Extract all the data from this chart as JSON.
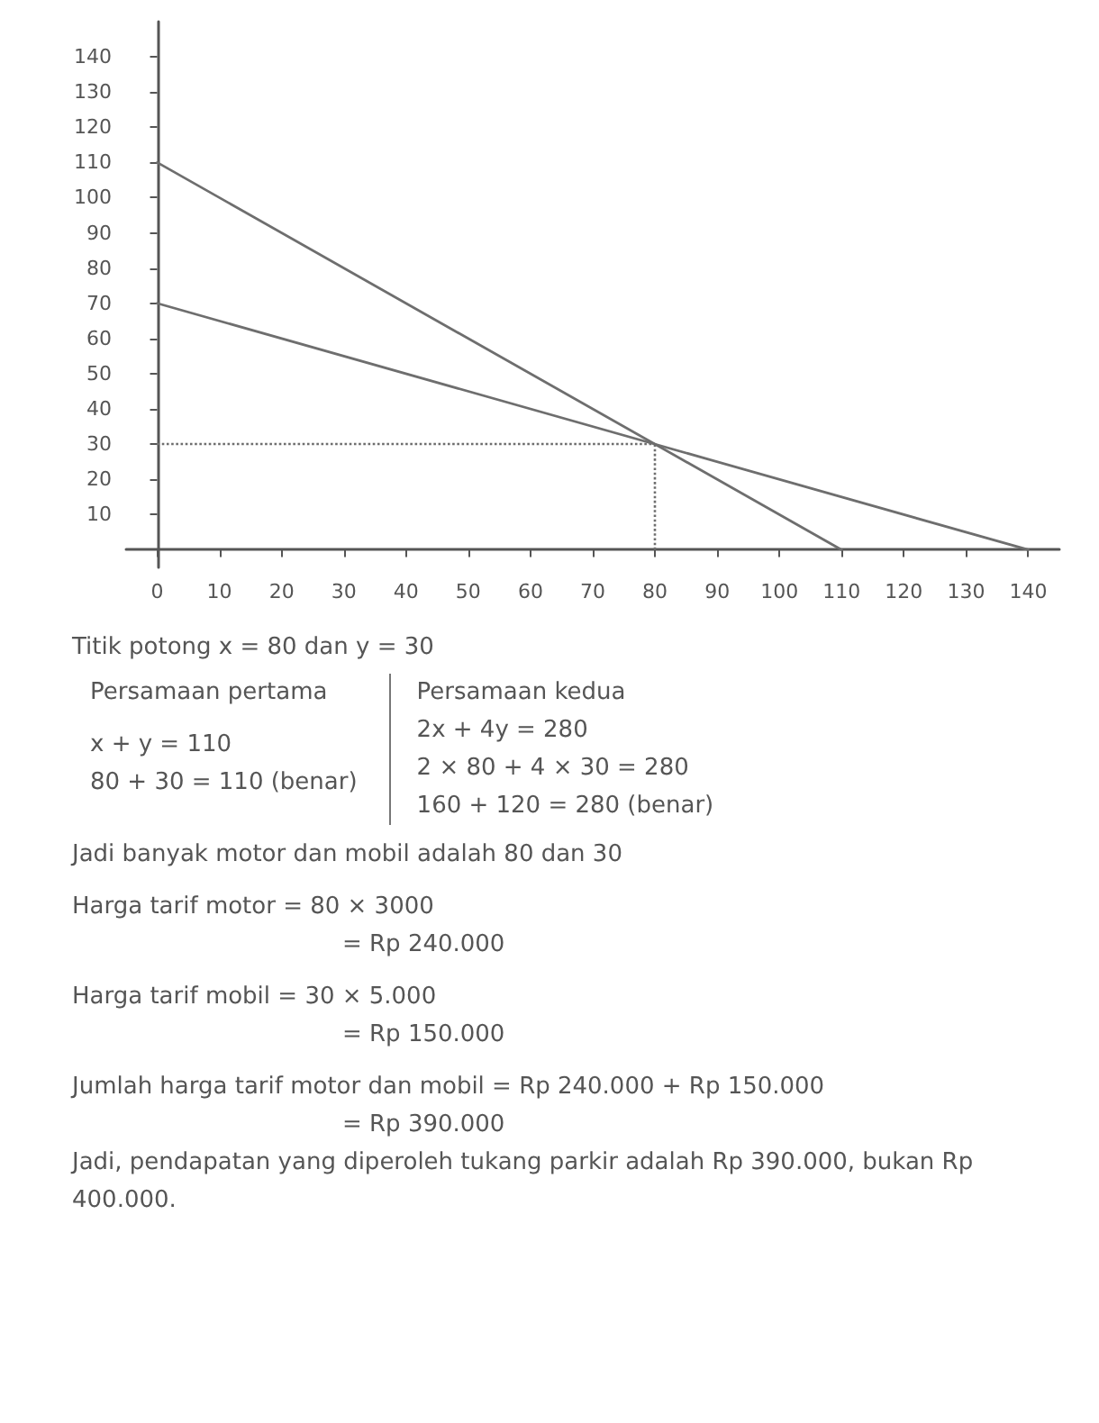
{
  "chart_data": {
    "type": "line",
    "series": [
      {
        "color": "#6e6e6e",
        "x": [
          0,
          110
        ],
        "values": [
          110,
          0
        ]
      },
      {
        "color": "#6e6e6e",
        "x": [
          0,
          140
        ],
        "values": [
          70,
          0
        ]
      }
    ],
    "xlim": [
      -5,
      145
    ],
    "ylim": [
      -5,
      150
    ],
    "xticks": [
      0,
      10,
      20,
      30,
      40,
      50,
      60,
      70,
      80,
      90,
      100,
      110,
      120,
      130,
      140
    ],
    "yticks": [
      10,
      20,
      30,
      40,
      50,
      60,
      70,
      80,
      90,
      100,
      110,
      120,
      130,
      140
    ],
    "grid": false,
    "marker": "none",
    "line_style": "solid",
    "ref_lines": [
      {
        "axis": "x",
        "value": 80,
        "label": null,
        "color": "#6e6e6e",
        "line_style": "dotted"
      },
      {
        "axis": "y",
        "value": 30,
        "label": null,
        "color": "#6e6e6e",
        "line_style": "dotted"
      }
    ],
    "annotations": [
      "Titik potong x = 80 dan y = 30",
      "Persamaan pertama",
      "x + y = 110",
      "80 + 30 = 110 (benar)",
      "Persamaan kedua",
      "2x + 4y = 280",
      "2 × 80 + 4 × 30 = 280",
      "160 + 120 = 280 (benar)",
      "Jadi banyak motor dan mobil adalah 80 dan 30",
      "Harga tarif motor = 80 × 3000",
      "= Rp 240.000",
      "Harga tarif mobil = 30 × 5.000",
      "= Rp 150.000",
      "Jumlah harga tarif motor dan mobil = Rp 240.000 + Rp 150.000",
      "= Rp 390.000",
      "Jadi, pendapatan yang diperoleh tukang parkir adalah Rp 390.000, bukan Rp 400.000."
    ]
  }
}
